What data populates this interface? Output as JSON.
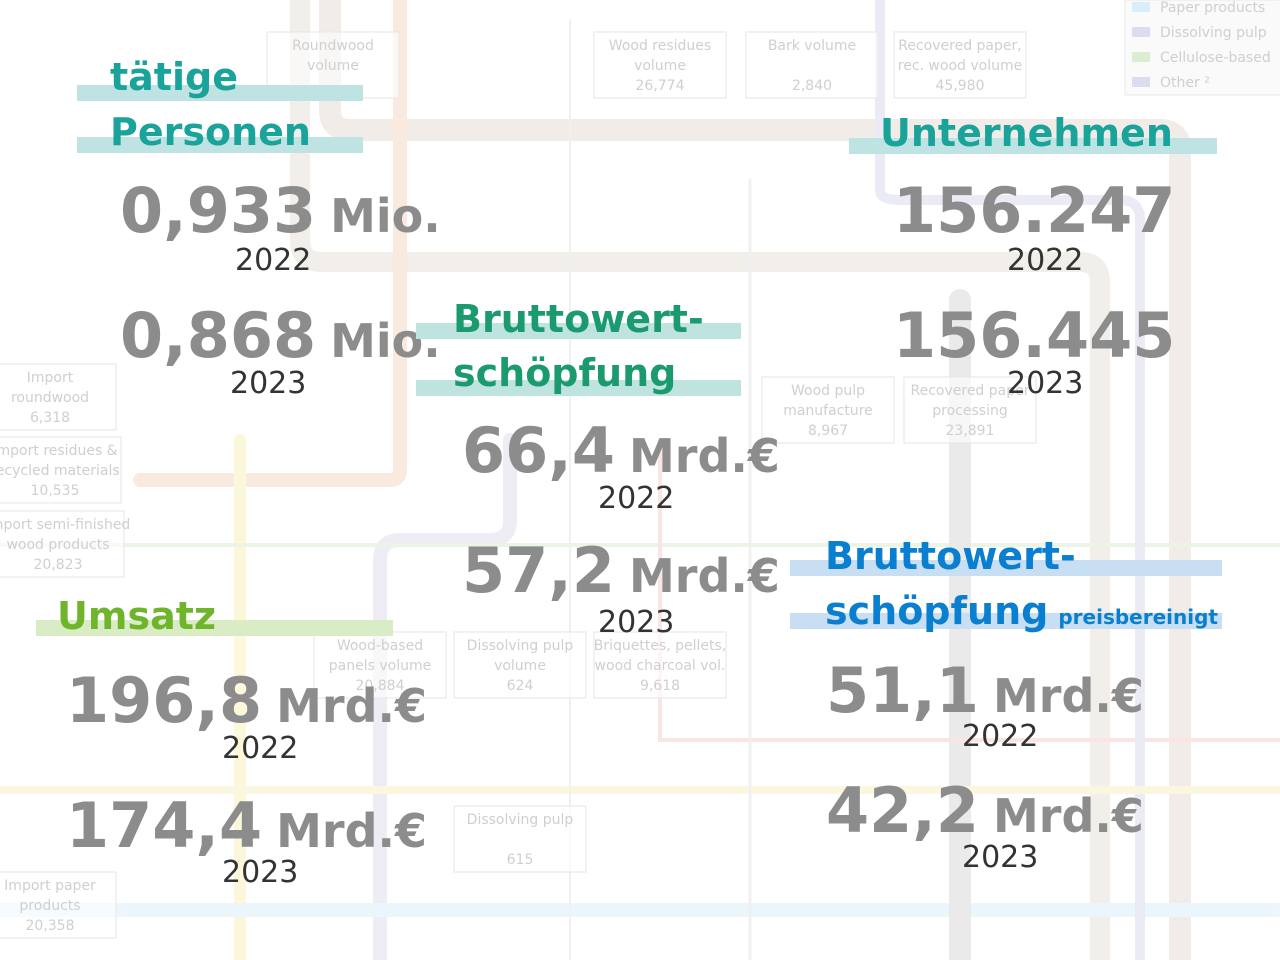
{
  "background_labels": [
    {
      "lines": [
        "Roundwood",
        "volume"
      ]
    },
    {
      "lines": [
        "Wood residues",
        "volume",
        "26,774"
      ]
    },
    {
      "lines": [
        "Bark volume",
        "",
        "2,840"
      ]
    },
    {
      "lines": [
        "Recovered paper,",
        "rec. wood volume",
        "45,980"
      ]
    },
    {
      "lines": [
        "Import",
        "roundwood",
        "6,318"
      ]
    },
    {
      "lines": [
        "Import residues &",
        "recycled materials",
        "10,535"
      ]
    },
    {
      "lines": [
        "Import semi-finished",
        "wood products",
        "20,823"
      ]
    },
    {
      "lines": [
        "Wood pulp",
        "manufacture",
        "8,967"
      ]
    },
    {
      "lines": [
        "Recovered paper",
        "processing",
        "23,891"
      ]
    },
    {
      "lines": [
        "Wood-based",
        "panels volume",
        "20,884"
      ]
    },
    {
      "lines": [
        "Dissolving pulp",
        "volume",
        "624"
      ]
    },
    {
      "lines": [
        "Briquettes, pellets,",
        "wood charcoal vol.",
        "9,618"
      ]
    },
    {
      "lines": [
        "Dissolving pulp",
        "",
        "615"
      ]
    },
    {
      "lines": [
        "Import paper",
        "products",
        "20,358"
      ]
    }
  ],
  "legend": [
    "Paper products",
    "Dissolving pulp",
    "Cellulose-based",
    "Other ²"
  ],
  "blocks": [
    {
      "title": [
        "tätige",
        "Personen"
      ],
      "figures": [
        {
          "value": "0,933",
          "unit": "Mio.",
          "year": "2022"
        },
        {
          "value": "0,868",
          "unit": "Mio.",
          "year": "2023"
        }
      ]
    },
    {
      "title": [
        "Unternehmen"
      ],
      "figures": [
        {
          "value": "156.247",
          "year": "2022"
        },
        {
          "value": "156.445",
          "year": "2023"
        }
      ]
    },
    {
      "title": [
        "Bruttowert-",
        "schöpfung"
      ],
      "figures": [
        {
          "value": "66,4",
          "unit": "Mrd.€",
          "year": "2022"
        },
        {
          "value": "57,2",
          "unit": "Mrd.€",
          "year": "2023"
        }
      ]
    },
    {
      "title": [
        "Umsatz"
      ],
      "figures": [
        {
          "value": "196,8",
          "unit": "Mrd.€",
          "year": "2022"
        },
        {
          "value": "174,4",
          "unit": "Mrd.€",
          "year": "2023"
        }
      ]
    },
    {
      "title": [
        "Bruttowert-",
        "schöpfung"
      ],
      "title_note": "preisbereinigt",
      "figures": [
        {
          "value": "51,1",
          "unit": "Mrd.€",
          "year": "2022"
        },
        {
          "value": "42,2",
          "unit": "Mrd.€",
          "year": "2023"
        }
      ]
    }
  ]
}
